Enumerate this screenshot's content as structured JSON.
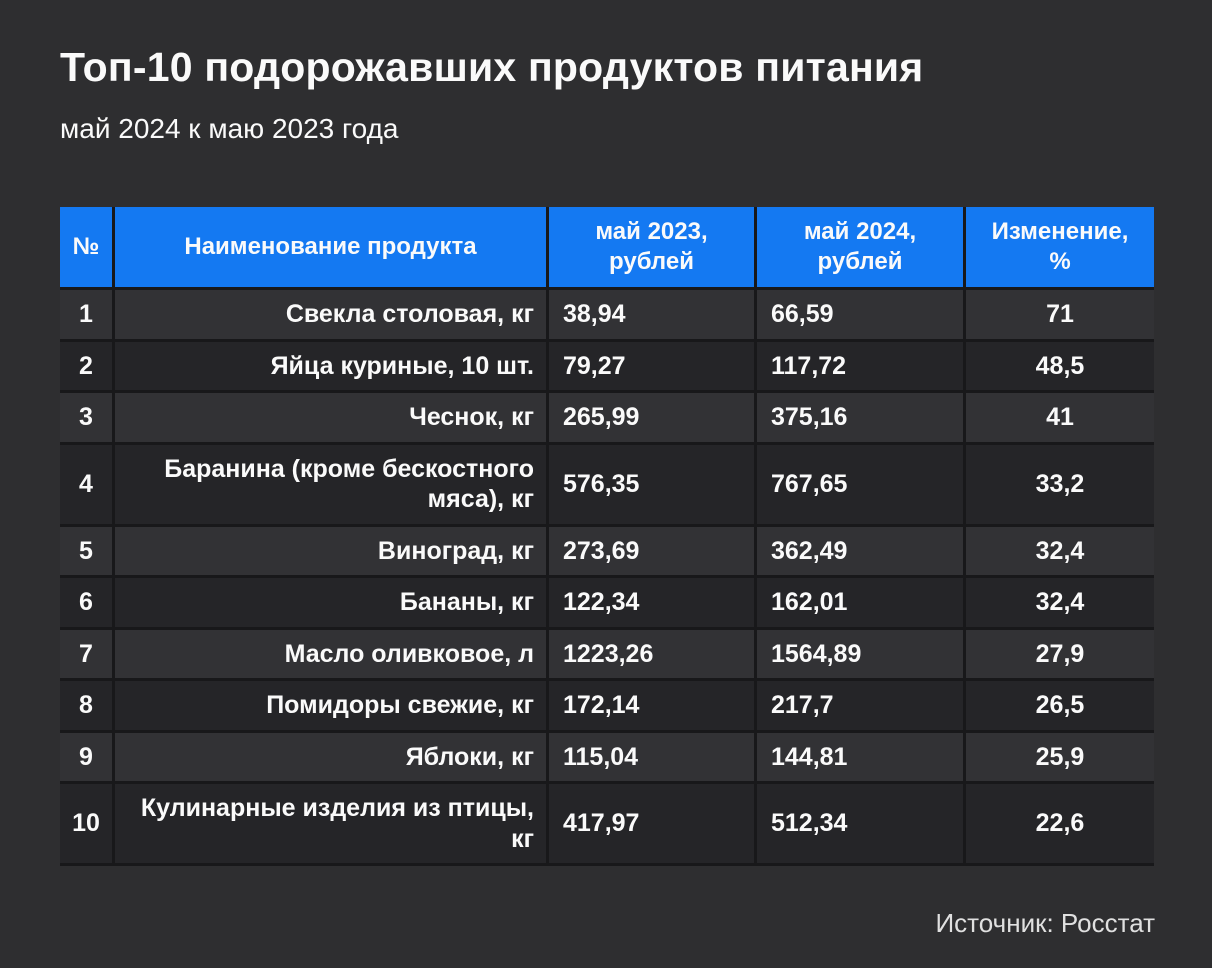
{
  "title": "Топ-10 подорожавших продуктов питания",
  "subtitle": "май 2024 к маю 2023 года",
  "source": "Источник: Росстат",
  "colors": {
    "page_bg": "#2e2e30",
    "header_bg": "#1479f2",
    "row_odd": "#323235",
    "row_even": "#252528",
    "divider": "#18181a",
    "text": "#fafafa",
    "source_text": "#e0e0e0"
  },
  "table": {
    "columns": [
      {
        "key": "num",
        "label": "№"
      },
      {
        "key": "name",
        "label": "Наименование продукта"
      },
      {
        "key": "may2023",
        "label": "май 2023,\nрублей"
      },
      {
        "key": "may2024",
        "label": "май 2024,\nрублей"
      },
      {
        "key": "change",
        "label": "Изменение,\n%"
      }
    ],
    "rows": [
      {
        "num": "1",
        "name": "Свекла столовая, кг",
        "may2023": "38,94",
        "may2024": "66,59",
        "change": "71"
      },
      {
        "num": "2",
        "name": "Яйца куриные, 10 шт.",
        "may2023": "79,27",
        "may2024": "117,72",
        "change": "48,5"
      },
      {
        "num": "3",
        "name": "Чеснок, кг",
        "may2023": "265,99",
        "may2024": "375,16",
        "change": "41"
      },
      {
        "num": "4",
        "name": "Баранина (кроме бескостного мяса), кг",
        "may2023": "576,35",
        "may2024": "767,65",
        "change": "33,2"
      },
      {
        "num": "5",
        "name": "Виноград, кг",
        "may2023": "273,69",
        "may2024": "362,49",
        "change": "32,4"
      },
      {
        "num": "6",
        "name": "Бананы, кг",
        "may2023": "122,34",
        "may2024": "162,01",
        "change": "32,4"
      },
      {
        "num": "7",
        "name": "Масло оливковое, л",
        "may2023": "1223,26",
        "may2024": "1564,89",
        "change": "27,9"
      },
      {
        "num": "8",
        "name": "Помидоры свежие, кг",
        "may2023": "172,14",
        "may2024": "217,7",
        "change": "26,5"
      },
      {
        "num": "9",
        "name": "Яблоки, кг",
        "may2023": "115,04",
        "may2024": "144,81",
        "change": "25,9"
      },
      {
        "num": "10",
        "name": "Кулинарные изделия из птицы, кг",
        "may2023": "417,97",
        "may2024": "512,34",
        "change": "22,6"
      }
    ]
  },
  "chart_data": {
    "type": "table",
    "title": "Топ-10 подорожавших продуктов питания",
    "subtitle": "май 2024 к маю 2023 года",
    "columns": [
      "№",
      "Наименование продукта",
      "май 2023, рублей",
      "май 2024, рублей",
      "Изменение, %"
    ],
    "rows": [
      [
        1,
        "Свекла столовая, кг",
        38.94,
        66.59,
        71
      ],
      [
        2,
        "Яйца куриные, 10 шт.",
        79.27,
        117.72,
        48.5
      ],
      [
        3,
        "Чеснок, кг",
        265.99,
        375.16,
        41
      ],
      [
        4,
        "Баранина (кроме бескостного мяса), кг",
        576.35,
        767.65,
        33.2
      ],
      [
        5,
        "Виноград, кг",
        273.69,
        362.49,
        32.4
      ],
      [
        6,
        "Бананы, кг",
        122.34,
        162.01,
        32.4
      ],
      [
        7,
        "Масло оливковое, л",
        1223.26,
        1564.89,
        27.9
      ],
      [
        8,
        "Помидоры свежие, кг",
        172.14,
        217.7,
        26.5
      ],
      [
        9,
        "Яблоки, кг",
        115.04,
        144.81,
        25.9
      ],
      [
        10,
        "Кулинарные изделия из птицы, кг",
        417.97,
        512.34,
        22.6
      ]
    ],
    "source": "Источник: Росстат"
  }
}
